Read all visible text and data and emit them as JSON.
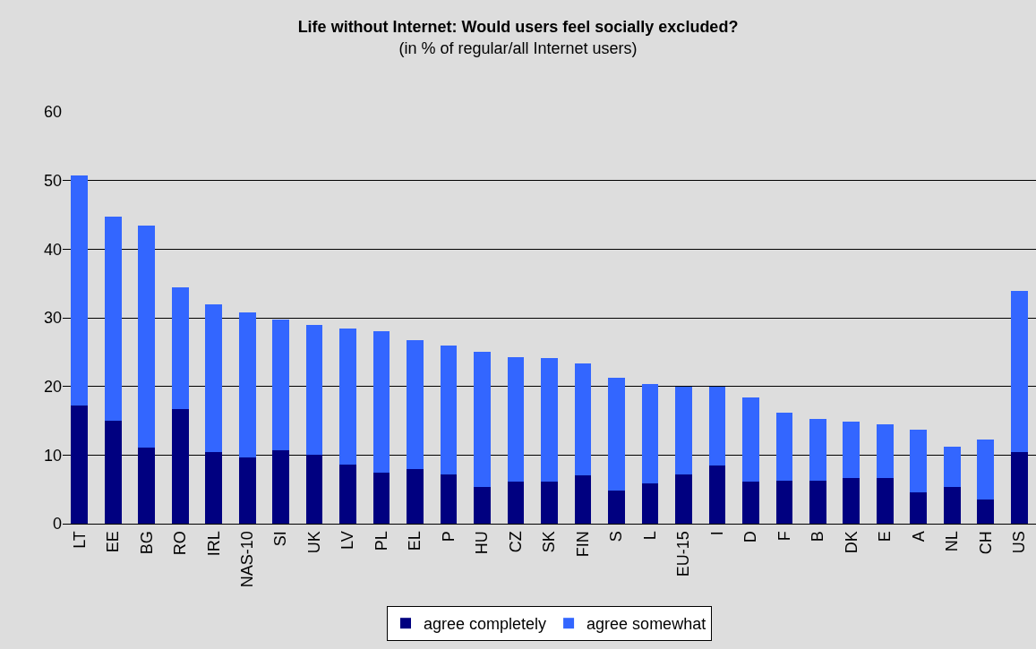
{
  "chart_data": {
    "type": "bar",
    "title": "Life without Internet: Would users feel socially excluded?",
    "subtitle": "(in % of regular/all Internet users)",
    "categories": [
      "LT",
      "EE",
      "BG",
      "RO",
      "IRL",
      "NAS-10",
      "SI",
      "UK",
      "LV",
      "PL",
      "EL",
      "P",
      "HU",
      "CZ",
      "SK",
      "FIN",
      "S",
      "L",
      "EU-15",
      "I",
      "D",
      "F",
      "B",
      "DK",
      "E",
      "A",
      "NL",
      "CH",
      "US"
    ],
    "stacked": true,
    "series": [
      {
        "name": "agree completely",
        "color": "#000080",
        "values": [
          17.2,
          15.0,
          11.1,
          16.7,
          10.4,
          9.6,
          10.7,
          10.0,
          8.6,
          7.5,
          8.0,
          7.2,
          5.3,
          6.1,
          6.1,
          7.0,
          4.8,
          5.9,
          7.2,
          8.5,
          6.1,
          6.3,
          6.2,
          6.7,
          6.6,
          4.6,
          5.3,
          3.5,
          10.4
        ]
      },
      {
        "name": "agree somewhat",
        "color": "#3366ff",
        "values": [
          33.6,
          29.8,
          32.3,
          17.7,
          21.5,
          21.2,
          19.1,
          19.0,
          19.8,
          20.5,
          18.7,
          18.8,
          19.7,
          18.2,
          18.0,
          16.3,
          16.4,
          14.5,
          12.8,
          11.4,
          12.3,
          9.9,
          9.1,
          8.2,
          7.9,
          9.1,
          5.9,
          8.8,
          23.5
        ]
      }
    ],
    "ylim": [
      0,
      60
    ],
    "yticks": [
      0,
      10,
      20,
      30,
      40,
      50,
      60
    ],
    "grid": "y",
    "legend": "bottom"
  }
}
